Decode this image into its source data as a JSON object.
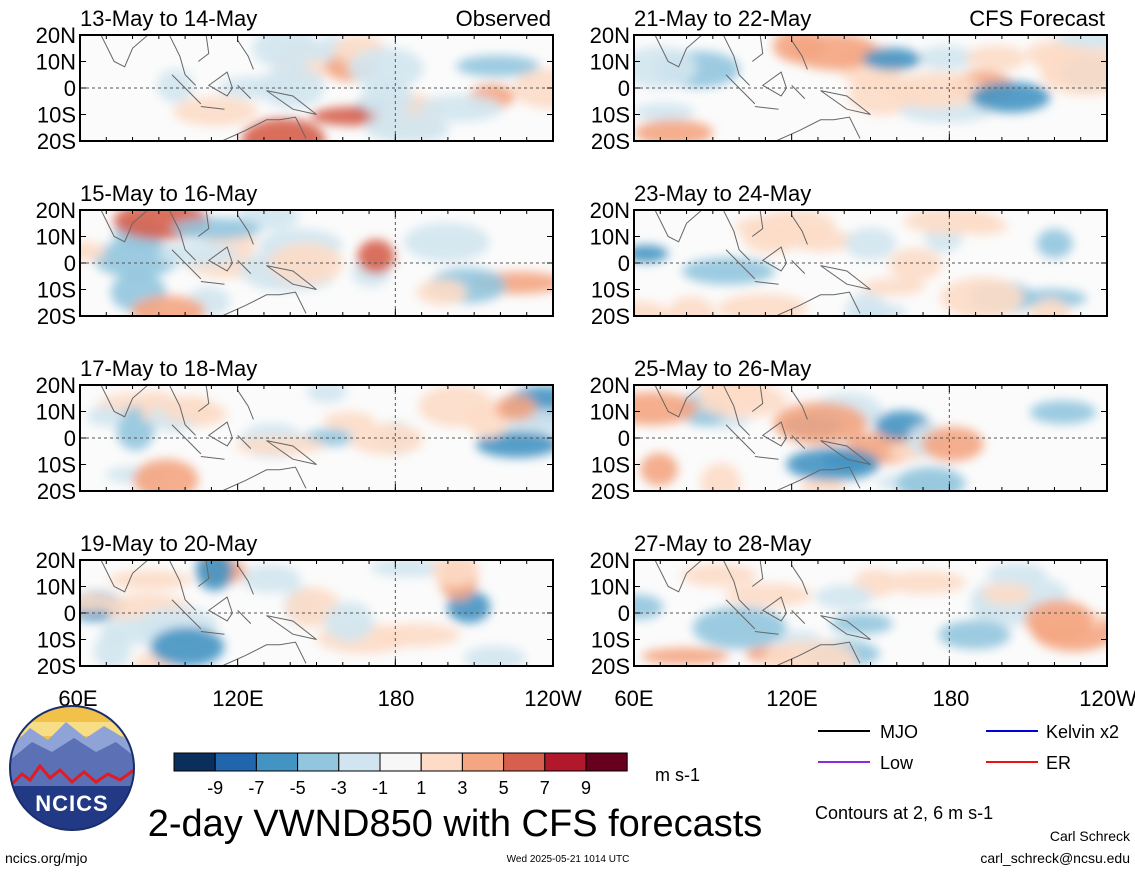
{
  "chart_data": {
    "type": "heatmap",
    "title": "2-day VWND850 with CFS forecasts",
    "variable": "850 hPa meridional wind anomaly",
    "units": "m s-1",
    "x_ticks": [
      "60E",
      "120E",
      "180",
      "120W"
    ],
    "y_ticks": [
      "20N",
      "10N",
      "0",
      "10S",
      "20S"
    ],
    "xlim": [
      60,
      240
    ],
    "ylim": [
      -20,
      20
    ],
    "reference_lines": {
      "equator": 0,
      "dateline": 180
    },
    "panel_tags": {
      "observed": "Observed",
      "forecast": "CFS Forecast"
    },
    "panels": [
      {
        "title": "13-May to 14-May",
        "source": "Observed"
      },
      {
        "title": "15-May to 16-May",
        "source": "Observed"
      },
      {
        "title": "17-May to 18-May",
        "source": "Observed"
      },
      {
        "title": "19-May to 20-May",
        "source": "Observed"
      },
      {
        "title": "21-May to 22-May",
        "source": "CFS Forecast"
      },
      {
        "title": "23-May to 24-May",
        "source": "CFS Forecast"
      },
      {
        "title": "25-May to 26-May",
        "source": "CFS Forecast"
      },
      {
        "title": "27-May to 28-May",
        "source": "CFS Forecast"
      }
    ],
    "colorbar": {
      "labels": [
        "-9",
        "-7",
        "-5",
        "-3",
        "-1",
        "1",
        "3",
        "5",
        "7",
        "9"
      ],
      "colors": [
        "#0b2f5c",
        "#2166ac",
        "#4393c3",
        "#92c5de",
        "#d1e5f0",
        "#f7f7f7",
        "#fddbc7",
        "#f4a582",
        "#d6604d",
        "#b2182b",
        "#67001f"
      ],
      "unit": "m s-1"
    },
    "legend": [
      {
        "label": "MJO",
        "color": "#000000"
      },
      {
        "label": "Kelvin x2",
        "color": "#0000dd"
      },
      {
        "label": "Low",
        "color": "#8a2be2"
      },
      {
        "label": "ER",
        "color": "#ee1111"
      }
    ],
    "contour_note": "Contours at 2, 6 m s-1"
  },
  "logo": {
    "text": "NCICS"
  },
  "footer": {
    "url": "ncics.org/mjo",
    "timestamp": "Wed 2025-05-21 1014 UTC",
    "author": "Carl Schreck",
    "email": "carl_schreck@ncsu.edu"
  }
}
